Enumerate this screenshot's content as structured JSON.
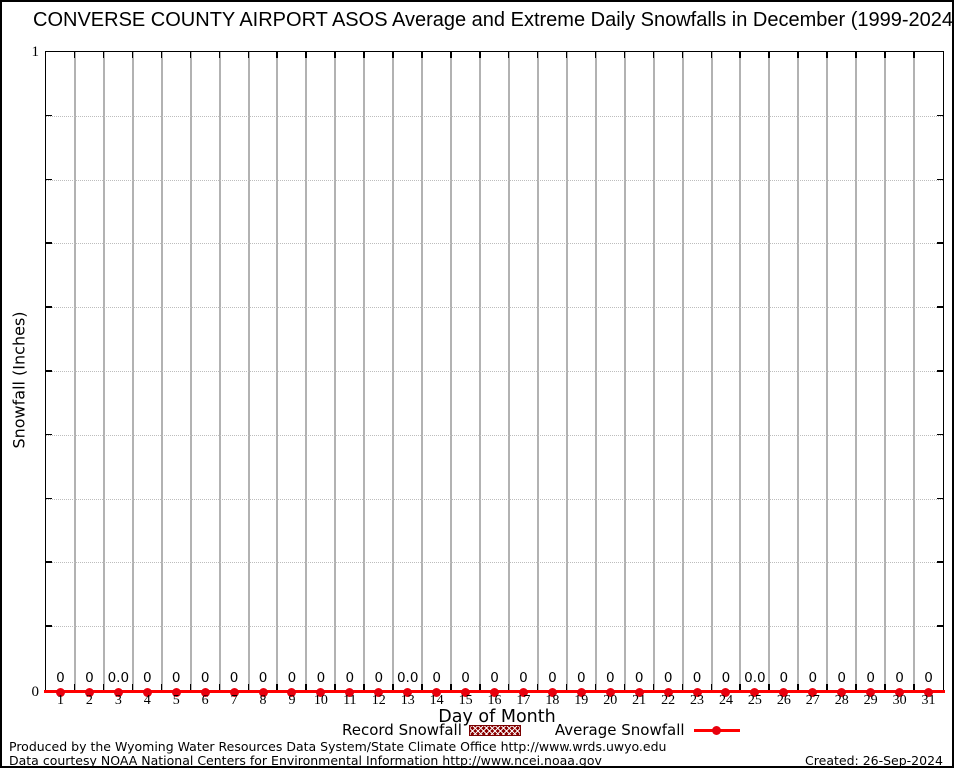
{
  "chart_data": {
    "type": "line",
    "title": "CONVERSE COUNTY AIRPORT ASOS Average and Extreme Daily Snowfalls in December (1999-2024)",
    "xlabel": "Day of Month",
    "ylabel": "Snowfall (Inches)",
    "ylim": [
      0,
      1
    ],
    "y_tick_labels": {
      "top": "1",
      "bottom": "0"
    },
    "y_minor_step": 0.1,
    "grid": {
      "vertical": "solid gray at day boundaries",
      "horizontal": "dotted at 0.1 steps"
    },
    "legend_position": "bottom-center",
    "categories": [
      1,
      2,
      3,
      4,
      5,
      6,
      7,
      8,
      9,
      10,
      11,
      12,
      13,
      14,
      15,
      16,
      17,
      18,
      19,
      20,
      21,
      22,
      23,
      24,
      25,
      26,
      27,
      28,
      29,
      30,
      31
    ],
    "series": [
      {
        "name": "Record Snowfall",
        "style": "hatched-box",
        "color": "#8b0000",
        "values": [
          0,
          0,
          0,
          0,
          0,
          0,
          0,
          0,
          0,
          0,
          0,
          0,
          0,
          0,
          0,
          0,
          0,
          0,
          0,
          0,
          0,
          0,
          0,
          0,
          0,
          0,
          0,
          0,
          0,
          0,
          0
        ]
      },
      {
        "name": "Average Snowfall",
        "style": "line-with-round-markers",
        "color": "#ff0000",
        "values": [
          0,
          0,
          0,
          0,
          0,
          0,
          0,
          0,
          0,
          0,
          0,
          0,
          0,
          0,
          0,
          0,
          0,
          0,
          0,
          0,
          0,
          0,
          0,
          0,
          0,
          0,
          0,
          0,
          0,
          0,
          0
        ]
      }
    ],
    "point_labels": [
      "0",
      "0",
      "0.0",
      "0",
      "0",
      "0",
      "0",
      "0",
      "0",
      "0",
      "0",
      "0",
      "0.0",
      "0",
      "0",
      "0",
      "0",
      "0",
      "0",
      "0",
      "0",
      "0",
      "0",
      "0",
      "0.0",
      "0",
      "0",
      "0",
      "0",
      "0",
      "0"
    ]
  },
  "footer": {
    "line1": "Produced by the Wyoming Water Resources Data System/State Climate Office http://www.wrds.uwyo.edu",
    "line2": "Data courtesy NOAA National Centers for Environmental Information http://www.ncei.noaa.gov",
    "created": "Created: 26-Sep-2024"
  },
  "colors": {
    "average_line": "#ff0000",
    "marker": "#e8000d",
    "record_key": "#8b0000",
    "vertical_grid": "#b2b2b2",
    "horizontal_grid_dotted": "#bdbdbd",
    "axis": "#000000",
    "background": "#ffffff"
  }
}
